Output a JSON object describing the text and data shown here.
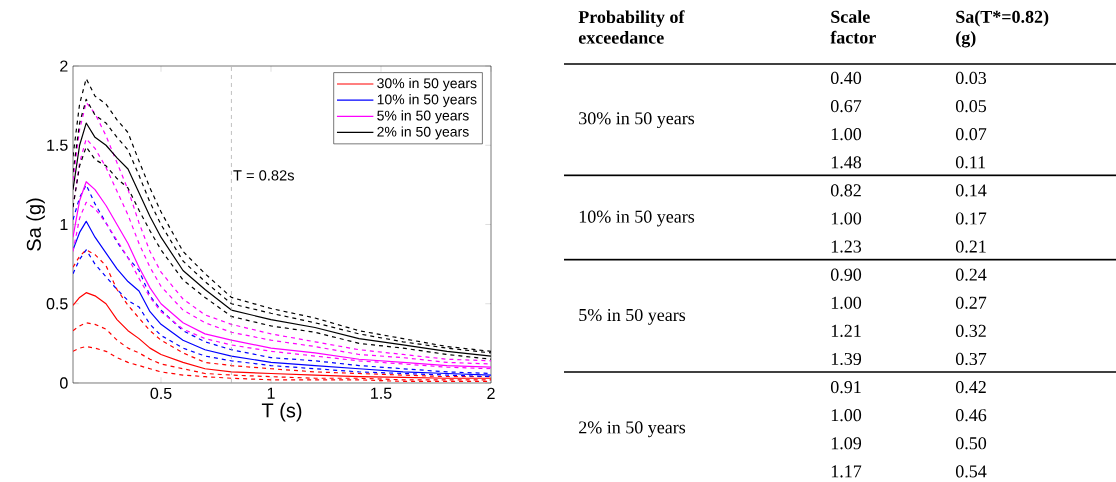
{
  "chart_data": [
    {
      "type": "line",
      "xlabel": "T (s)",
      "ylabel": "Sa (g)",
      "x": [
        0.1,
        0.13,
        0.16,
        0.2,
        0.25,
        0.3,
        0.35,
        0.4,
        0.45,
        0.5,
        0.6,
        0.7,
        0.82,
        1.0,
        1.2,
        1.4,
        1.6,
        1.8,
        2.0
      ],
      "xlim": [
        0.1,
        2
      ],
      "ylim": [
        0,
        2
      ],
      "xticks": [
        0.5,
        1,
        1.5,
        2
      ],
      "yticks": [
        0,
        0.5,
        1,
        1.5,
        2
      ],
      "grid": false,
      "legend": "top right",
      "marker": "none",
      "ref_lines": [
        {
          "axis": "x",
          "value": 0.82,
          "label": "T = 0.82s",
          "color": "#a0a0a0",
          "line_style": "dashed"
        }
      ],
      "series": [
        {
          "color": "#ff0000",
          "line_style": "dashed",
          "values": [
            0.2,
            0.22,
            0.23,
            0.22,
            0.2,
            0.16,
            0.13,
            0.11,
            0.09,
            0.07,
            0.05,
            0.04,
            0.03,
            0.02,
            0.02,
            0.02,
            0.01,
            0.01,
            0.01
          ]
        },
        {
          "color": "#ff0000",
          "line_style": "dashed",
          "values": [
            0.33,
            0.36,
            0.38,
            0.37,
            0.34,
            0.27,
            0.22,
            0.19,
            0.15,
            0.12,
            0.09,
            0.06,
            0.05,
            0.04,
            0.03,
            0.03,
            0.02,
            0.02,
            0.02
          ]
        },
        {
          "name": "30% in 50 years",
          "color": "#ff0000",
          "line_style": "solid",
          "values": [
            0.49,
            0.54,
            0.57,
            0.55,
            0.5,
            0.4,
            0.33,
            0.28,
            0.22,
            0.18,
            0.13,
            0.09,
            0.07,
            0.06,
            0.05,
            0.04,
            0.035,
            0.03,
            0.03
          ]
        },
        {
          "color": "#ff0000",
          "line_style": "dashed",
          "values": [
            0.73,
            0.8,
            0.84,
            0.81,
            0.74,
            0.59,
            0.49,
            0.41,
            0.33,
            0.27,
            0.19,
            0.13,
            0.11,
            0.09,
            0.07,
            0.06,
            0.05,
            0.04,
            0.04
          ]
        },
        {
          "color": "#0000ff",
          "line_style": "dashed",
          "values": [
            0.69,
            0.78,
            0.84,
            0.75,
            0.67,
            0.59,
            0.52,
            0.48,
            0.37,
            0.3,
            0.22,
            0.17,
            0.14,
            0.11,
            0.09,
            0.07,
            0.06,
            0.05,
            0.04
          ]
        },
        {
          "name": "10% in 50 years",
          "color": "#0000ff",
          "line_style": "solid",
          "values": [
            0.84,
            0.95,
            1.02,
            0.92,
            0.82,
            0.72,
            0.64,
            0.58,
            0.45,
            0.37,
            0.27,
            0.21,
            0.17,
            0.13,
            0.11,
            0.09,
            0.07,
            0.06,
            0.05
          ]
        },
        {
          "color": "#0000ff",
          "line_style": "dashed",
          "values": [
            1.03,
            1.17,
            1.25,
            1.13,
            1.01,
            0.89,
            0.79,
            0.71,
            0.55,
            0.46,
            0.33,
            0.26,
            0.21,
            0.16,
            0.14,
            0.11,
            0.09,
            0.07,
            0.06
          ]
        },
        {
          "color": "#ff00ff",
          "line_style": "dashed",
          "values": [
            0.83,
            1.04,
            1.14,
            1.1,
            1.01,
            0.9,
            0.79,
            0.66,
            0.54,
            0.45,
            0.34,
            0.28,
            0.24,
            0.2,
            0.17,
            0.14,
            0.12,
            0.1,
            0.09
          ]
        },
        {
          "name": "5% in 50 years",
          "color": "#ff00ff",
          "line_style": "solid",
          "values": [
            0.92,
            1.15,
            1.27,
            1.22,
            1.12,
            1.0,
            0.88,
            0.73,
            0.6,
            0.5,
            0.38,
            0.31,
            0.27,
            0.22,
            0.19,
            0.15,
            0.13,
            0.11,
            0.1
          ]
        },
        {
          "color": "#ff00ff",
          "line_style": "dashed",
          "values": [
            1.11,
            1.39,
            1.54,
            1.48,
            1.36,
            1.21,
            1.06,
            0.88,
            0.73,
            0.61,
            0.46,
            0.38,
            0.32,
            0.27,
            0.23,
            0.18,
            0.16,
            0.13,
            0.12
          ]
        },
        {
          "color": "#ff00ff",
          "line_style": "dashed",
          "values": [
            1.28,
            1.6,
            1.77,
            1.7,
            1.56,
            1.39,
            1.22,
            1.01,
            0.83,
            0.7,
            0.53,
            0.43,
            0.37,
            0.31,
            0.26,
            0.21,
            0.18,
            0.15,
            0.14
          ]
        },
        {
          "color": "#000000",
          "line_style": "dashed",
          "values": [
            1.11,
            1.37,
            1.49,
            1.41,
            1.37,
            1.29,
            1.23,
            1.09,
            0.96,
            0.84,
            0.65,
            0.54,
            0.42,
            0.36,
            0.32,
            0.25,
            0.22,
            0.18,
            0.15
          ]
        },
        {
          "name": "2% in 50 years",
          "color": "#000000",
          "line_style": "solid",
          "values": [
            1.22,
            1.5,
            1.64,
            1.55,
            1.5,
            1.42,
            1.35,
            1.2,
            1.05,
            0.92,
            0.71,
            0.59,
            0.46,
            0.4,
            0.35,
            0.28,
            0.24,
            0.2,
            0.17
          ]
        },
        {
          "color": "#000000",
          "line_style": "dashed",
          "values": [
            1.33,
            1.64,
            1.79,
            1.69,
            1.64,
            1.55,
            1.47,
            1.31,
            1.14,
            1.0,
            0.77,
            0.64,
            0.5,
            0.44,
            0.38,
            0.31,
            0.26,
            0.22,
            0.19
          ]
        },
        {
          "color": "#000000",
          "line_style": "dashed",
          "values": [
            1.43,
            1.76,
            1.92,
            1.81,
            1.76,
            1.66,
            1.58,
            1.4,
            1.23,
            1.08,
            0.83,
            0.69,
            0.54,
            0.47,
            0.41,
            0.33,
            0.28,
            0.23,
            0.2
          ]
        }
      ]
    },
    {
      "type": "other",
      "annotations": [
        "Probability of exceedance",
        "Scale factor",
        "Sa(T*=0.82) (g)",
        "30% in 50 years",
        "0.40",
        "0.03",
        "0.67",
        "0.05",
        "1.00",
        "0.07",
        "1.48",
        "0.11",
        "10% in 50 years",
        "0.82",
        "0.14",
        "1.00",
        "0.17",
        "1.23",
        "0.21",
        "5% in 50 years",
        "0.90",
        "0.24",
        "1.00",
        "0.27",
        "1.21",
        "0.32",
        "1.39",
        "0.37",
        "2% in 50 years",
        "0.91",
        "0.42",
        "1.00",
        "0.46",
        "1.09",
        "0.50",
        "1.17",
        "0.54"
      ]
    }
  ]
}
